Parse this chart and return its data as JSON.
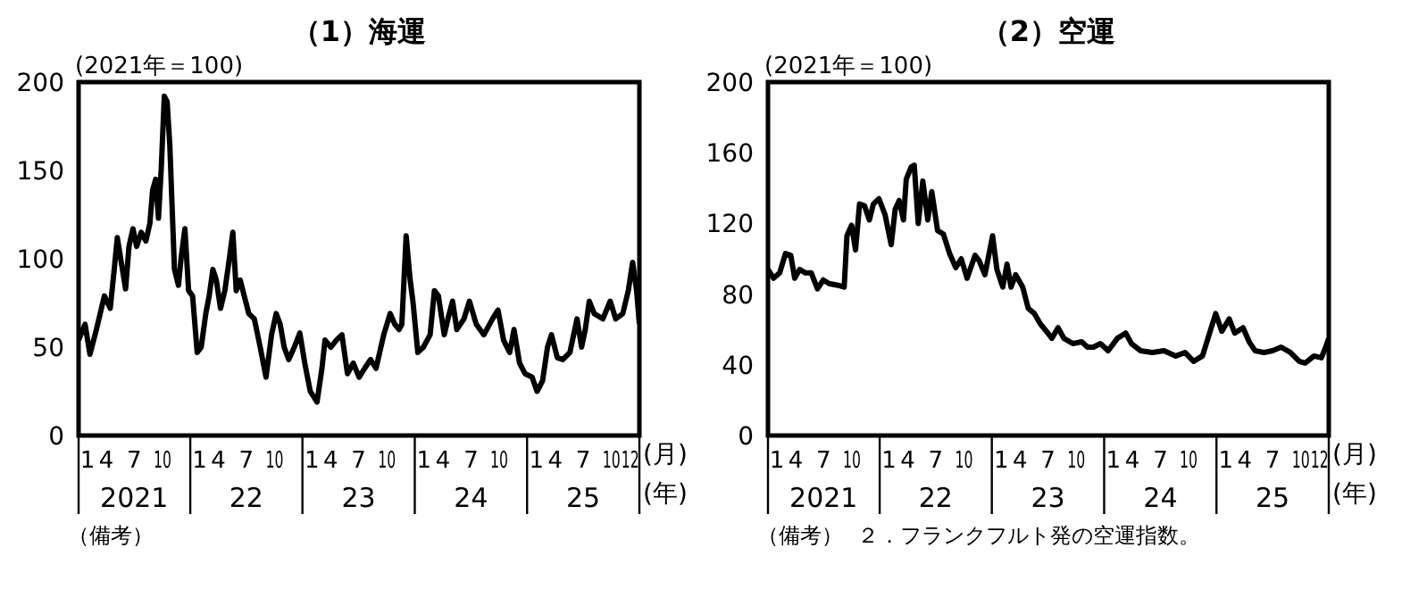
{
  "chart_data": [
    {
      "type": "line",
      "title": "（1）海運",
      "ylabel": "(2021年＝100)",
      "xlabel": "(月)",
      "x2label": "(年)",
      "color": "#000000",
      "x": [
        "2021-01-01",
        "2021-01-22",
        "2021-02-07",
        "2021-02-28",
        "2021-03-26",
        "2021-04-14",
        "2021-04-27",
        "2021-05-07",
        "2021-05-20",
        "2021-06-03",
        "2021-06-14",
        "2021-06-27",
        "2021-07-09",
        "2021-07-24",
        "2021-08-08",
        "2021-08-21",
        "2021-08-30",
        "2021-09-09",
        "2021-09-18",
        "2021-09-27",
        "2021-10-07",
        "2021-10-16",
        "2021-10-25",
        "2021-11-09",
        "2021-11-22",
        "2021-12-01",
        "2021-12-13",
        "2021-12-25",
        "2022-01-07",
        "2022-01-22",
        "2022-02-04",
        "2022-02-19",
        "2022-03-02",
        "2022-03-14",
        "2022-03-25",
        "2022-04-08",
        "2022-04-22",
        "2022-05-05",
        "2022-05-18",
        "2022-05-29",
        "2022-06-11",
        "2022-06-24",
        "2022-07-09",
        "2022-07-27",
        "2022-08-15",
        "2022-09-03",
        "2022-09-21",
        "2022-10-06",
        "2022-10-19",
        "2022-11-01",
        "2022-11-16",
        "2022-12-04",
        "2022-12-22",
        "2023-01-07",
        "2023-01-25",
        "2023-02-16",
        "2023-03-04",
        "2023-03-14",
        "2023-04-02",
        "2023-04-20",
        "2023-05-08",
        "2023-05-26",
        "2023-06-14",
        "2023-07-03",
        "2023-07-21",
        "2023-08-09",
        "2023-08-27",
        "2023-09-21",
        "2023-10-12",
        "2023-10-27",
        "2023-11-10",
        "2023-11-19",
        "2023-12-03",
        "2023-12-16",
        "2023-12-25",
        "2024-01-10",
        "2024-01-28",
        "2024-02-19",
        "2024-03-04",
        "2024-03-17",
        "2024-04-05",
        "2024-04-17",
        "2024-05-02",
        "2024-05-16",
        "2024-06-08",
        "2024-06-26",
        "2024-07-18",
        "2024-08-12",
        "2024-09-09",
        "2024-09-27",
        "2024-10-15",
        "2024-11-04",
        "2024-11-18",
        "2024-12-06",
        "2024-12-24",
        "2025-01-16",
        "2025-02-01",
        "2025-02-19",
        "2025-03-07",
        "2025-03-20",
        "2025-04-08",
        "2025-04-26",
        "2025-05-19",
        "2025-06-11",
        "2025-06-26",
        "2025-07-08",
        "2025-07-21",
        "2025-08-06",
        "2025-09-03",
        "2025-09-27",
        "2025-10-15",
        "2025-11-07",
        "2025-11-25",
        "2025-12-09",
        "2025-12-22",
        "2025-12-31"
      ],
      "values": [
        54,
        63,
        46,
        60,
        79,
        72,
        94,
        112,
        98,
        83,
        107,
        117,
        107,
        115,
        110,
        120,
        139,
        145,
        123,
        151,
        192,
        189,
        164,
        94,
        85,
        101,
        117,
        82,
        79,
        47,
        50,
        69,
        79,
        94,
        88,
        72,
        82,
        98,
        115,
        82,
        88,
        79,
        69,
        66,
        50,
        33,
        57,
        69,
        63,
        50,
        43,
        50,
        58,
        41,
        25,
        19,
        38,
        54,
        50,
        54,
        57,
        35,
        41,
        33,
        38,
        43,
        38,
        57,
        69,
        63,
        60,
        63,
        113,
        88,
        76,
        47,
        50,
        57,
        82,
        79,
        57,
        66,
        76,
        60,
        66,
        76,
        63,
        57,
        66,
        71,
        54,
        47,
        60,
        41,
        35,
        33,
        25,
        31,
        50,
        57,
        44,
        43,
        47,
        66,
        50,
        60,
        76,
        69,
        66,
        76,
        66,
        69,
        82,
        98,
        82,
        63
      ],
      "xlim": [
        "2021-01-01",
        "2025-12-31"
      ],
      "xticks": [
        {
          "value": "2021-01-01",
          "label": "1"
        },
        {
          "value": "2021-04-01",
          "label": "4"
        },
        {
          "value": "2021-07-01",
          "label": "7"
        },
        {
          "value": "2021-10-01",
          "label": "10"
        },
        {
          "value": "2022-01-01",
          "label": "1"
        },
        {
          "value": "2022-04-01",
          "label": "4"
        },
        {
          "value": "2022-07-01",
          "label": "7"
        },
        {
          "value": "2022-10-01",
          "label": "10"
        },
        {
          "value": "2023-01-01",
          "label": "1"
        },
        {
          "value": "2023-04-01",
          "label": "4"
        },
        {
          "value": "2023-07-01",
          "label": "7"
        },
        {
          "value": "2023-10-01",
          "label": "10"
        },
        {
          "value": "2024-01-01",
          "label": "1"
        },
        {
          "value": "2024-04-01",
          "label": "4"
        },
        {
          "value": "2024-07-01",
          "label": "7"
        },
        {
          "value": "2024-10-01",
          "label": "10"
        },
        {
          "value": "2025-01-01",
          "label": "1"
        },
        {
          "value": "2025-04-01",
          "label": "4"
        },
        {
          "value": "2025-07-01",
          "label": "7"
        },
        {
          "value": "2025-10-01",
          "label": "10"
        },
        {
          "value": "2025-12-01",
          "label": "12"
        }
      ],
      "x2lim": [
        "2021-01-01",
        "2025-12-31"
      ],
      "x2ticks": [
        {
          "value": "2021-07-01",
          "label": "2021"
        },
        {
          "value": "2022-07-01",
          "label": "22"
        },
        {
          "value": "2023-07-01",
          "label": "23"
        },
        {
          "value": "2024-07-01",
          "label": "24"
        },
        {
          "value": "2025-07-01",
          "label": "25"
        }
      ],
      "ylim": [
        0,
        200
      ],
      "yticks": [
        0,
        50,
        100,
        150,
        200
      ],
      "annotations": [
        "（備考）"
      ]
    },
    {
      "type": "line",
      "title": "（2）空運",
      "ylabel": "(2021年＝100)",
      "xlabel": "(月)",
      "x2label": "(年)",
      "color": "#000000",
      "x": [
        "2021-01-01",
        "2021-01-19",
        "2021-02-08",
        "2021-02-27",
        "2021-03-16",
        "2021-03-29",
        "2021-04-14",
        "2021-05-03",
        "2021-05-22",
        "2021-06-11",
        "2021-06-30",
        "2021-07-19",
        "2021-08-17",
        "2021-09-06",
        "2021-09-15",
        "2021-09-30",
        "2021-10-13",
        "2021-10-26",
        "2021-11-11",
        "2021-11-27",
        "2021-12-10",
        "2021-12-28",
        "2022-01-17",
        "2022-02-06",
        "2022-02-19",
        "2022-03-04",
        "2022-03-18",
        "2022-03-27",
        "2022-04-12",
        "2022-04-22",
        "2022-05-05",
        "2022-05-20",
        "2022-06-05",
        "2022-06-18",
        "2022-07-07",
        "2022-07-26",
        "2022-08-15",
        "2022-09-04",
        "2022-09-22",
        "2022-10-11",
        "2022-11-06",
        "2022-11-19",
        "2022-12-08",
        "2023-01-02",
        "2023-01-16",
        "2023-02-04",
        "2023-02-18",
        "2023-03-03",
        "2023-03-18",
        "2023-04-10",
        "2023-04-28",
        "2023-05-18",
        "2023-06-07",
        "2023-06-26",
        "2023-07-14",
        "2023-08-03",
        "2023-08-22",
        "2023-09-20",
        "2023-10-19",
        "2023-11-07",
        "2023-11-26",
        "2023-12-19",
        "2024-01-13",
        "2024-02-12",
        "2024-03-10",
        "2024-03-29",
        "2024-04-27",
        "2024-06-05",
        "2024-07-13",
        "2024-08-20",
        "2024-09-19",
        "2024-10-17",
        "2024-11-15",
        "2024-12-10",
        "2024-12-28",
        "2025-01-17",
        "2025-02-10",
        "2025-02-28",
        "2025-03-27",
        "2025-04-16",
        "2025-05-05",
        "2025-06-03",
        "2025-07-01",
        "2025-07-29",
        "2025-08-28",
        "2025-09-26",
        "2025-10-15",
        "2025-11-13",
        "2025-12-07",
        "2025-12-21",
        "2025-12-31"
      ],
      "values": [
        94,
        89,
        92,
        103,
        102,
        89,
        94,
        92,
        92,
        83,
        88,
        86,
        85,
        84,
        113,
        119,
        105,
        131,
        130,
        122,
        131,
        134,
        125,
        108,
        128,
        133,
        122,
        145,
        152,
        153,
        120,
        144,
        122,
        138,
        116,
        114,
        103,
        95,
        100,
        89,
        102,
        99,
        91,
        113,
        94,
        84,
        97,
        84,
        91,
        84,
        72,
        69,
        63,
        59,
        55,
        61,
        55,
        52,
        53,
        50,
        50,
        52,
        48,
        55,
        58,
        52,
        48,
        47,
        48,
        45,
        47,
        42,
        45,
        59,
        69,
        59,
        66,
        58,
        61,
        53,
        48,
        47,
        48,
        50,
        47,
        42,
        41,
        45,
        44,
        50,
        55
      ],
      "xlim": [
        "2021-01-01",
        "2025-12-31"
      ],
      "xticks": [
        {
          "value": "2021-01-01",
          "label": "1"
        },
        {
          "value": "2021-04-01",
          "label": "4"
        },
        {
          "value": "2021-07-01",
          "label": "7"
        },
        {
          "value": "2021-10-01",
          "label": "10"
        },
        {
          "value": "2022-01-01",
          "label": "1"
        },
        {
          "value": "2022-04-01",
          "label": "4"
        },
        {
          "value": "2022-07-01",
          "label": "7"
        },
        {
          "value": "2022-10-01",
          "label": "10"
        },
        {
          "value": "2023-01-01",
          "label": "1"
        },
        {
          "value": "2023-04-01",
          "label": "4"
        },
        {
          "value": "2023-07-01",
          "label": "7"
        },
        {
          "value": "2023-10-01",
          "label": "10"
        },
        {
          "value": "2024-01-01",
          "label": "1"
        },
        {
          "value": "2024-04-01",
          "label": "4"
        },
        {
          "value": "2024-07-01",
          "label": "7"
        },
        {
          "value": "2024-10-01",
          "label": "10"
        },
        {
          "value": "2025-01-01",
          "label": "1"
        },
        {
          "value": "2025-04-01",
          "label": "4"
        },
        {
          "value": "2025-07-01",
          "label": "7"
        },
        {
          "value": "2025-10-01",
          "label": "10"
        },
        {
          "value": "2025-12-01",
          "label": "12"
        }
      ],
      "x2lim": [
        "2021-01-01",
        "2025-12-31"
      ],
      "x2ticks": [
        {
          "value": "2021-07-01",
          "label": "2021"
        },
        {
          "value": "2022-07-01",
          "label": "22"
        },
        {
          "value": "2023-07-01",
          "label": "23"
        },
        {
          "value": "2024-07-01",
          "label": "24"
        },
        {
          "value": "2025-07-01",
          "label": "25"
        }
      ],
      "ylim": [
        0,
        200
      ],
      "yticks": [
        0,
        40,
        80,
        120,
        160,
        200
      ],
      "annotations": [
        "（備考）",
        "２．フランクフルト発の空運指数。"
      ]
    }
  ]
}
